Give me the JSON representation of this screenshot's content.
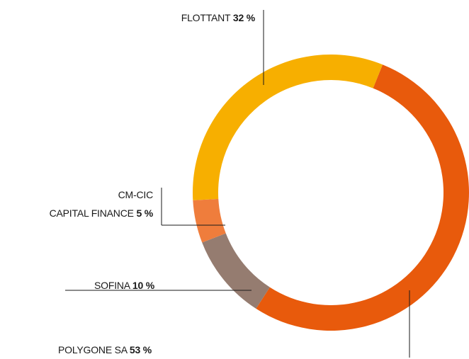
{
  "chart_data": {
    "type": "donut",
    "categories": [
      "POLYGONE SA",
      "SOFINA",
      "CM-CIC\nCAPITAL FINANCE",
      "FLOTTANT"
    ],
    "values": [
      53,
      10,
      5,
      32
    ],
    "value_labels": [
      "53 %",
      "10 %",
      "5 %",
      "32 %"
    ],
    "colors": [
      "#e85a0c",
      "#957c70",
      "#ef7d3c",
      "#f7af00"
    ]
  }
}
